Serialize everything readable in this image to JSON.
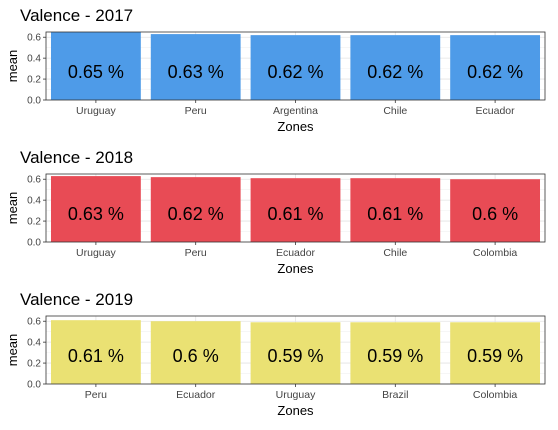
{
  "chart_data": [
    {
      "type": "bar",
      "title": "Valence - 2017",
      "xlabel": "Zones",
      "ylabel": "mean",
      "categories": [
        "Uruguay",
        "Peru",
        "Argentina",
        "Chile",
        "Ecuador"
      ],
      "values": [
        0.65,
        0.63,
        0.62,
        0.62,
        0.62
      ],
      "data_labels": [
        "0.65 %",
        "0.63 %",
        "0.62 %",
        "0.62 %",
        "0.62 %"
      ],
      "ylim": [
        0,
        0.65
      ],
      "yticks": [
        "0.0",
        "0.2",
        "0.4",
        "0.6"
      ],
      "color": "#4E9BE8",
      "grid": true,
      "legend": "none"
    },
    {
      "type": "bar",
      "title": "Valence - 2018",
      "xlabel": "Zones",
      "ylabel": "mean",
      "categories": [
        "Uruguay",
        "Peru",
        "Ecuador",
        "Chile",
        "Colombia"
      ],
      "values": [
        0.63,
        0.62,
        0.61,
        0.61,
        0.6
      ],
      "data_labels": [
        "0.63 %",
        "0.62 %",
        "0.61 %",
        "0.61 %",
        "0.6 %"
      ],
      "ylim": [
        0,
        0.65
      ],
      "yticks": [
        "0.0",
        "0.2",
        "0.4",
        "0.6"
      ],
      "color": "#E84B55",
      "grid": true,
      "legend": "none"
    },
    {
      "type": "bar",
      "title": "Valence - 2019",
      "xlabel": "Zones",
      "ylabel": "mean",
      "categories": [
        "Peru",
        "Ecuador",
        "Uruguay",
        "Brazil",
        "Colombia"
      ],
      "values": [
        0.61,
        0.6,
        0.59,
        0.59,
        0.59
      ],
      "data_labels": [
        "0.61 %",
        "0.6 %",
        "0.59 %",
        "0.59 %",
        "0.59 %"
      ],
      "ylim": [
        0,
        0.65
      ],
      "yticks": [
        "0.0",
        "0.2",
        "0.4",
        "0.6"
      ],
      "color": "#EAE173",
      "grid": true,
      "legend": "none"
    }
  ]
}
